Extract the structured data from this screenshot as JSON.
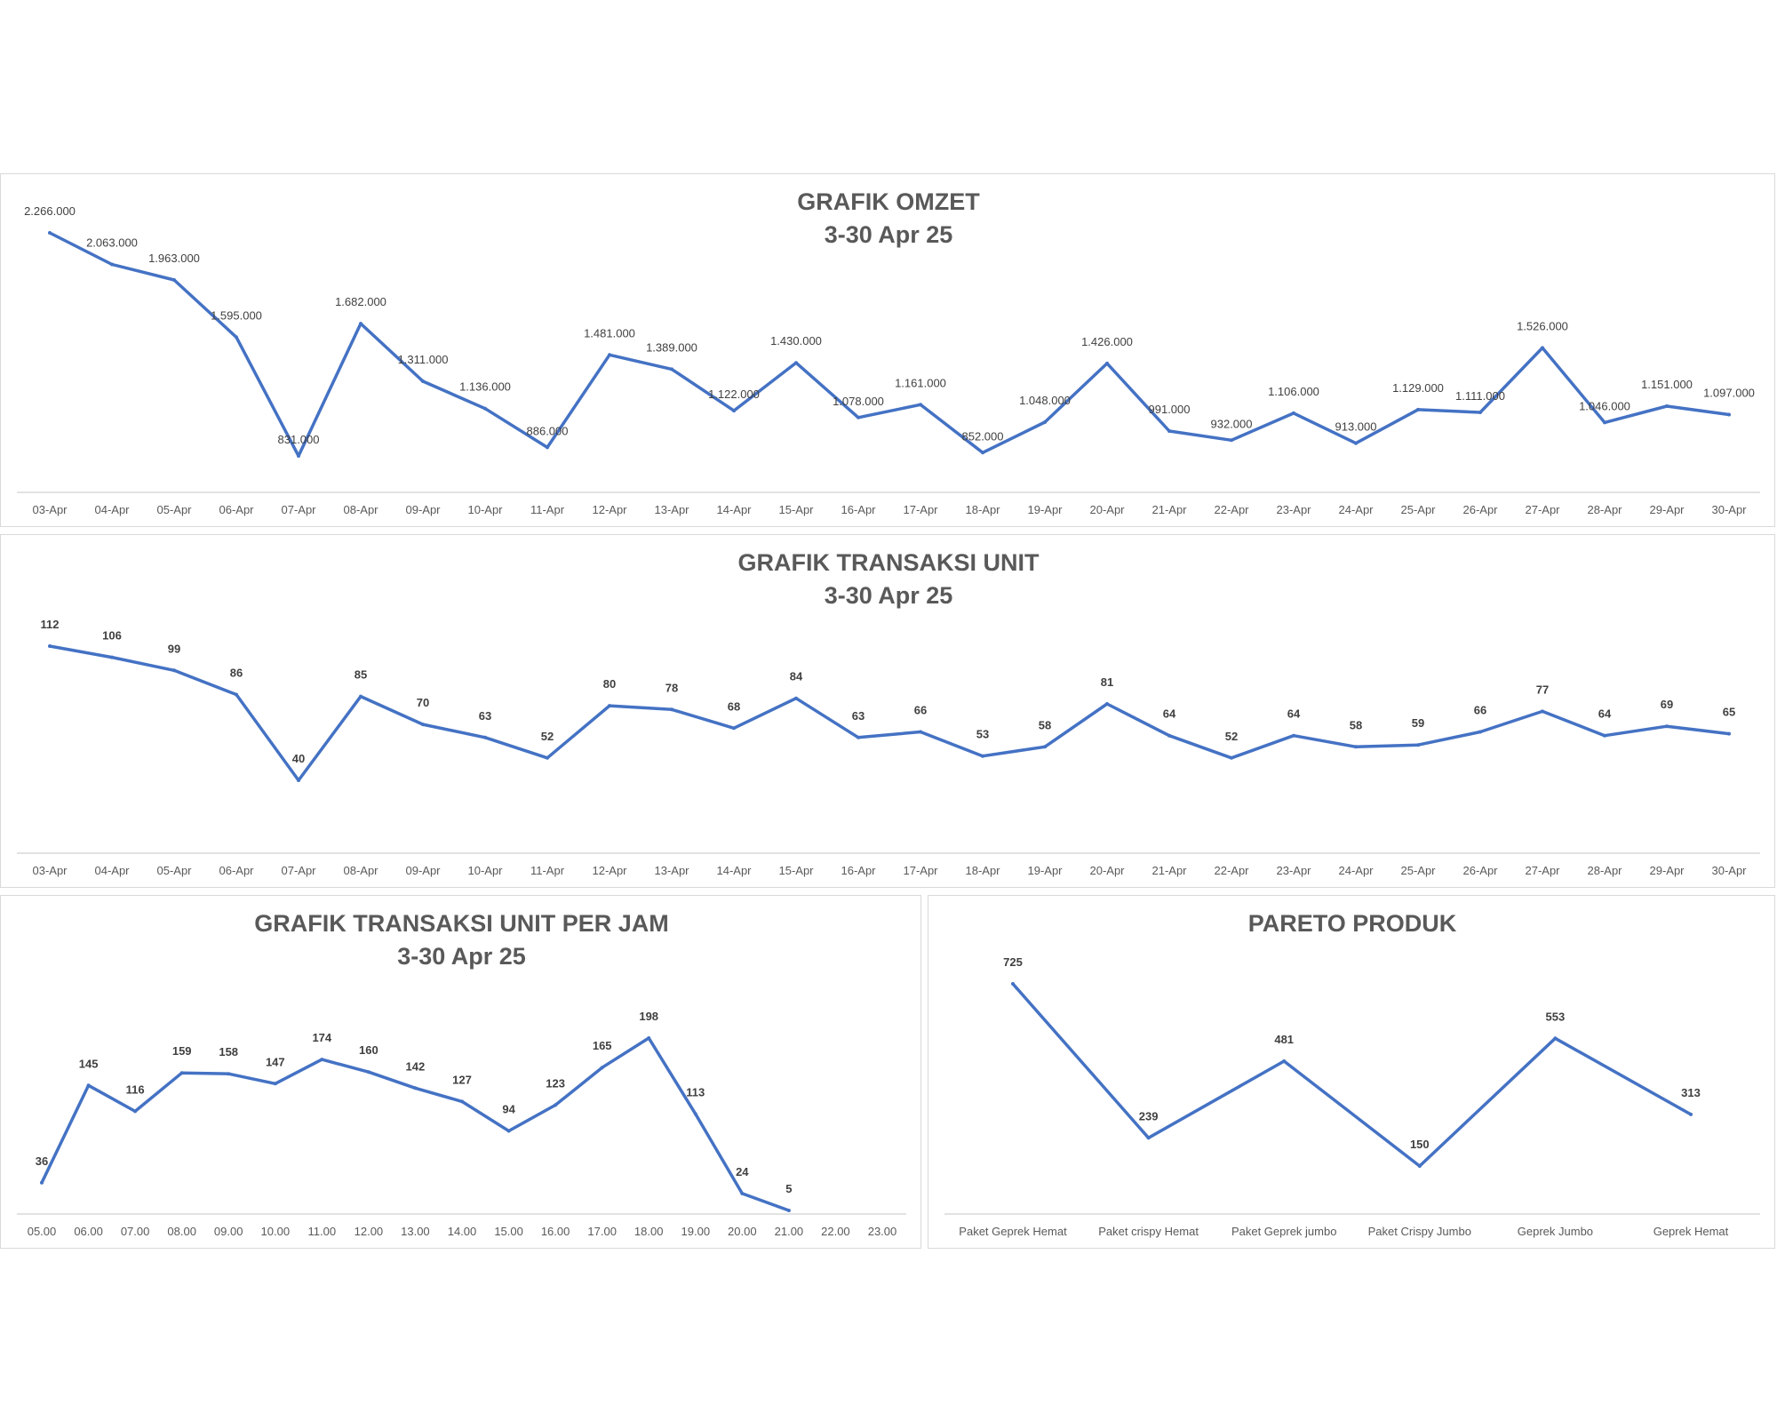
{
  "chart_data": [
    {
      "type": "line",
      "title": "GRAFIK OMZET",
      "subtitle": "3-30 Apr 25",
      "categories": [
        "03-Apr",
        "04-Apr",
        "05-Apr",
        "06-Apr",
        "07-Apr",
        "08-Apr",
        "09-Apr",
        "10-Apr",
        "11-Apr",
        "12-Apr",
        "13-Apr",
        "14-Apr",
        "15-Apr",
        "16-Apr",
        "17-Apr",
        "18-Apr",
        "19-Apr",
        "20-Apr",
        "21-Apr",
        "22-Apr",
        "23-Apr",
        "24-Apr",
        "25-Apr",
        "26-Apr",
        "27-Apr",
        "28-Apr",
        "29-Apr",
        "30-Apr"
      ],
      "values": [
        2266000,
        2063000,
        1963000,
        1595000,
        831000,
        1682000,
        1311000,
        1136000,
        886000,
        1481000,
        1389000,
        1122000,
        1430000,
        1078000,
        1161000,
        852000,
        1048000,
        1426000,
        991000,
        932000,
        1106000,
        913000,
        1129000,
        1111000,
        1526000,
        1046000,
        1151000,
        1097000
      ],
      "labels": [
        "2.266.000",
        "2.063.000",
        "1.963.000",
        "1.595.000",
        "831.000",
        "1.682.000",
        "1.311.000",
        "1.136.000",
        "886.000",
        "1.481.000",
        "1.389.000",
        "1.122.000",
        "1.430.000",
        "1.078.000",
        "1.161.000",
        "852.000",
        "1.048.000",
        "1.426.000",
        "991.000",
        "932.000",
        "1.106.000",
        "913.000",
        "1.129.000",
        "1.111.000",
        "1.526.000",
        "1.046.000",
        "1.151.000",
        "1.097.000"
      ],
      "line_color": "#4472c4",
      "grid": false
    },
    {
      "type": "line",
      "title": "GRAFIK TRANSAKSI UNIT",
      "subtitle": "3-30 Apr 25",
      "categories": [
        "03-Apr",
        "04-Apr",
        "05-Apr",
        "06-Apr",
        "07-Apr",
        "08-Apr",
        "09-Apr",
        "10-Apr",
        "11-Apr",
        "12-Apr",
        "13-Apr",
        "14-Apr",
        "15-Apr",
        "16-Apr",
        "17-Apr",
        "18-Apr",
        "19-Apr",
        "20-Apr",
        "21-Apr",
        "22-Apr",
        "23-Apr",
        "24-Apr",
        "25-Apr",
        "26-Apr",
        "27-Apr",
        "28-Apr",
        "29-Apr",
        "30-Apr"
      ],
      "values": [
        112,
        106,
        99,
        86,
        40,
        85,
        70,
        63,
        52,
        80,
        78,
        68,
        84,
        63,
        66,
        53,
        58,
        81,
        64,
        52,
        64,
        58,
        59,
        66,
        77,
        64,
        69,
        65
      ],
      "line_color": "#4472c4",
      "grid": false
    },
    {
      "type": "line",
      "title": "GRAFIK TRANSAKSI UNIT PER JAM",
      "subtitle": "3-30 Apr 25",
      "categories": [
        "05.00",
        "06.00",
        "07.00",
        "08.00",
        "09.00",
        "10.00",
        "11.00",
        "12.00",
        "13.00",
        "14.00",
        "15.00",
        "16.00",
        "17.00",
        "18.00",
        "19.00",
        "20.00",
        "21.00",
        "22.00",
        "23.00"
      ],
      "values": [
        36,
        145,
        116,
        159,
        158,
        147,
        174,
        160,
        142,
        127,
        94,
        123,
        165,
        198,
        113,
        24,
        5,
        null,
        null
      ],
      "line_color": "#4472c4",
      "grid": false
    },
    {
      "type": "line",
      "title": "PARETO PRODUK",
      "categories": [
        "Paket Geprek Hemat",
        "Paket crispy Hemat",
        "Paket Geprek jumbo",
        "Paket Crispy Jumbo",
        "Geprek Jumbo",
        "Geprek Hemat"
      ],
      "values": [
        725,
        239,
        481,
        150,
        553,
        313
      ],
      "line_color": "#4472c4",
      "grid": false
    }
  ]
}
